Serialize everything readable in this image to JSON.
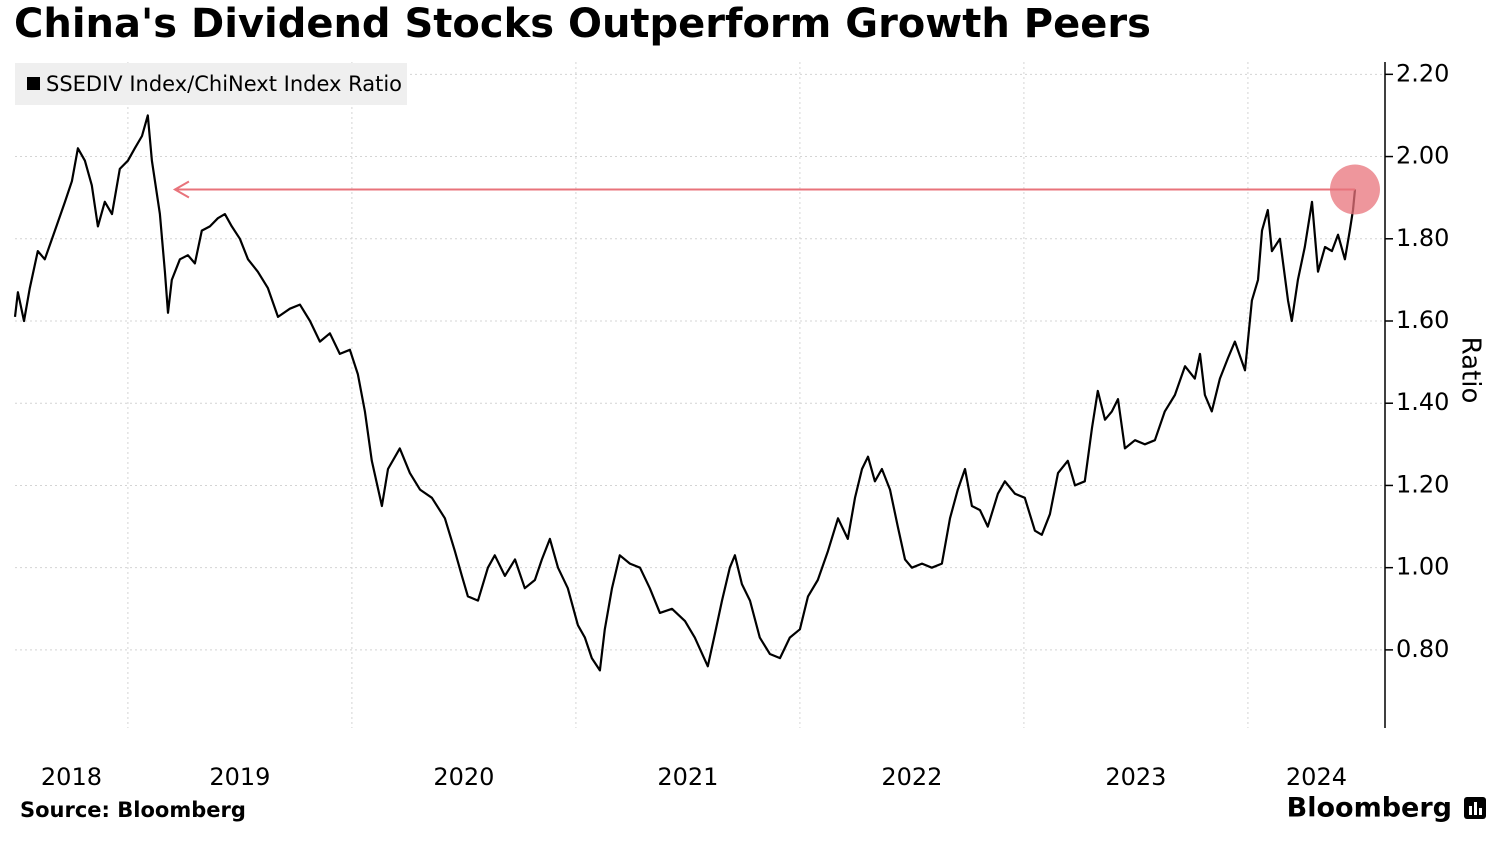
{
  "chart_data": {
    "type": "line",
    "title": "China's Dividend Stocks Outperform Growth Peers",
    "y_label": "Ratio",
    "source": "Source: Bloomberg",
    "logo": "Bloomberg",
    "x": [
      2018.496,
      2018.509,
      2018.536,
      2018.562,
      2018.598,
      2018.629,
      2018.674,
      2018.719,
      2018.75,
      2018.777,
      2018.808,
      2018.839,
      2018.866,
      2018.897,
      2018.929,
      2018.964,
      2019.0,
      2019.031,
      2019.063,
      2019.089,
      2019.107,
      2019.143,
      2019.165,
      2019.179,
      2019.196,
      2019.232,
      2019.268,
      2019.299,
      2019.33,
      2019.366,
      2019.402,
      2019.433,
      2019.464,
      2019.5,
      2019.536,
      2019.58,
      2019.625,
      2019.67,
      2019.723,
      2019.768,
      2019.813,
      2019.857,
      2019.902,
      2019.946,
      2019.991,
      2020.027,
      2020.058,
      2020.089,
      2020.134,
      2020.161,
      2020.214,
      2020.259,
      2020.304,
      2020.357,
      2020.415,
      2020.46,
      2020.491,
      2020.518,
      2020.563,
      2020.607,
      2020.638,
      2020.683,
      2020.728,
      2020.772,
      2020.817,
      2020.848,
      2020.884,
      2020.92,
      2020.964,
      2021.009,
      2021.04,
      2021.071,
      2021.107,
      2021.129,
      2021.161,
      2021.196,
      2021.241,
      2021.286,
      2021.33,
      2021.375,
      2021.429,
      2021.487,
      2021.531,
      2021.589,
      2021.621,
      2021.652,
      2021.687,
      2021.71,
      2021.741,
      2021.777,
      2021.821,
      2021.866,
      2021.911,
      2021.955,
      2022.0,
      2022.036,
      2022.08,
      2022.125,
      2022.17,
      2022.214,
      2022.246,
      2022.277,
      2022.304,
      2022.335,
      2022.366,
      2022.402,
      2022.437,
      2022.469,
      2022.5,
      2022.545,
      2022.589,
      2022.634,
      2022.67,
      2022.705,
      2022.737,
      2022.768,
      2022.804,
      2022.839,
      2022.884,
      2022.915,
      2022.96,
      2023.004,
      2023.049,
      2023.08,
      2023.116,
      2023.152,
      2023.196,
      2023.228,
      2023.272,
      2023.304,
      2023.33,
      2023.362,
      2023.393,
      2023.42,
      2023.451,
      2023.496,
      2023.54,
      2023.585,
      2023.629,
      2023.674,
      2023.719,
      2023.763,
      2023.786,
      2023.808,
      2023.839,
      2023.875,
      2023.911,
      2023.942,
      2023.987,
      2024.018,
      2024.045,
      2024.063,
      2024.089,
      2024.107,
      2024.143,
      2024.179,
      2024.196,
      2024.223,
      2024.254,
      2024.286,
      2024.313,
      2024.344,
      2024.375,
      2024.402,
      2024.433,
      2024.455,
      2024.469,
      2024.478
    ],
    "series": [
      {
        "name": "SSEDIV Index/ChiNext Index Ratio",
        "color": "#000000",
        "values": [
          1.61,
          1.67,
          1.6,
          1.68,
          1.77,
          1.75,
          1.82,
          1.89,
          1.94,
          2.02,
          1.99,
          1.93,
          1.83,
          1.89,
          1.86,
          1.97,
          1.99,
          2.02,
          2.05,
          2.1,
          1.99,
          1.86,
          1.72,
          1.62,
          1.7,
          1.75,
          1.76,
          1.74,
          1.82,
          1.83,
          1.85,
          1.86,
          1.83,
          1.8,
          1.75,
          1.72,
          1.68,
          1.61,
          1.63,
          1.64,
          1.6,
          1.55,
          1.57,
          1.52,
          1.53,
          1.47,
          1.38,
          1.26,
          1.15,
          1.24,
          1.29,
          1.23,
          1.19,
          1.17,
          1.12,
          1.04,
          0.98,
          0.93,
          0.92,
          1.0,
          1.03,
          0.98,
          1.02,
          0.95,
          0.97,
          1.02,
          1.07,
          1.0,
          0.95,
          0.86,
          0.83,
          0.78,
          0.75,
          0.85,
          0.95,
          1.03,
          1.01,
          1.0,
          0.95,
          0.89,
          0.9,
          0.87,
          0.83,
          0.76,
          0.84,
          0.92,
          1.0,
          1.03,
          0.96,
          0.92,
          0.83,
          0.79,
          0.78,
          0.83,
          0.85,
          0.93,
          0.97,
          1.04,
          1.12,
          1.07,
          1.17,
          1.24,
          1.27,
          1.21,
          1.24,
          1.19,
          1.1,
          1.02,
          1.0,
          1.01,
          1.0,
          1.01,
          1.12,
          1.19,
          1.24,
          1.15,
          1.14,
          1.1,
          1.18,
          1.21,
          1.18,
          1.17,
          1.09,
          1.08,
          1.13,
          1.23,
          1.26,
          1.2,
          1.21,
          1.34,
          1.43,
          1.36,
          1.38,
          1.41,
          1.29,
          1.31,
          1.3,
          1.31,
          1.38,
          1.42,
          1.49,
          1.46,
          1.52,
          1.42,
          1.38,
          1.46,
          1.51,
          1.55,
          1.48,
          1.65,
          1.7,
          1.82,
          1.87,
          1.77,
          1.8,
          1.65,
          1.6,
          1.7,
          1.78,
          1.89,
          1.72,
          1.78,
          1.77,
          1.81,
          1.75,
          1.82,
          1.87,
          1.92
        ]
      }
    ],
    "xlim": [
      2018.496,
      2024.612
    ],
    "xticks": [
      {
        "value": 2018,
        "label": "2018"
      },
      {
        "value": 2019,
        "label": "2019"
      },
      {
        "value": 2020,
        "label": "2020"
      },
      {
        "value": 2021,
        "label": "2021"
      },
      {
        "value": 2022,
        "label": "2022"
      },
      {
        "value": 2023,
        "label": "2023"
      },
      {
        "value": 2024,
        "label": "2024"
      }
    ],
    "ylim": [
      0.61,
      2.23
    ],
    "yticks": [
      {
        "value": 0.8,
        "label": "0.80"
      },
      {
        "value": 1.0,
        "label": "1.00"
      },
      {
        "value": 1.2,
        "label": "1.20"
      },
      {
        "value": 1.4,
        "label": "1.40"
      },
      {
        "value": 1.6,
        "label": "1.60"
      },
      {
        "value": 1.8,
        "label": "1.80"
      },
      {
        "value": 2.0,
        "label": "2.00"
      },
      {
        "value": 2.2,
        "label": "2.20"
      }
    ],
    "grid": true,
    "legend": "top-left",
    "highlight": {
      "y": 1.92,
      "x_start": 2019.21,
      "x_end": 2024.478,
      "color": "#e8737b"
    }
  }
}
